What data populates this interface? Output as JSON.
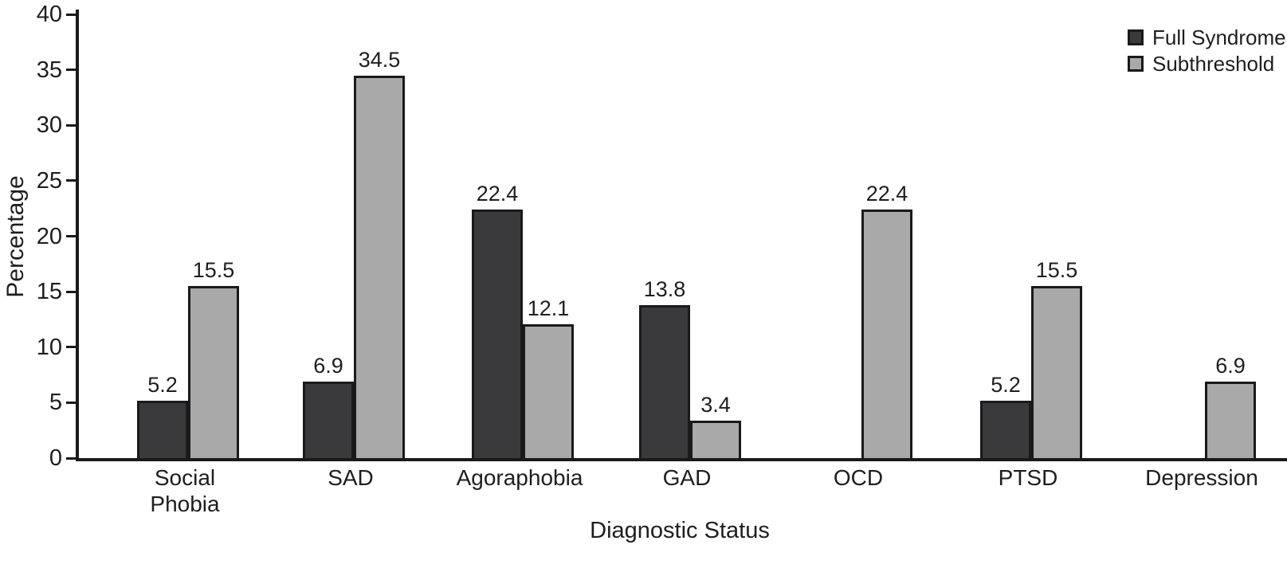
{
  "chart_data": {
    "type": "bar",
    "title": "",
    "xlabel": "Diagnostic Status",
    "ylabel": "Percentage",
    "categories": [
      "Social\nPhobia",
      "SAD",
      "Agoraphobia",
      "GAD",
      "OCD",
      "PTSD",
      "Depression"
    ],
    "series": [
      {
        "name": "Full Syndrome",
        "color": "#3a3a3c",
        "values": [
          5.2,
          6.9,
          22.4,
          13.8,
          null,
          5.2,
          null
        ]
      },
      {
        "name": "Subthreshold",
        "color": "#a9a9a9",
        "values": [
          15.5,
          34.5,
          12.1,
          3.4,
          22.4,
          15.5,
          6.9
        ]
      }
    ],
    "bar_value_labels": [
      [
        "5.2",
        "6.9",
        "22.4",
        "13.8",
        null,
        "5.2",
        null
      ],
      [
        "15.5",
        "34.5",
        "12.1",
        "3.4",
        "22.4",
        "15.5",
        "6.9"
      ]
    ],
    "ylim": [
      0,
      40
    ],
    "yticks": [
      "0",
      "5",
      "10",
      "15",
      "20",
      "25",
      "30",
      "35",
      "40"
    ],
    "grid": false,
    "legend_position": "top-right"
  },
  "colors": {
    "axis": "#1a1a1a",
    "text": "#1e1e1e",
    "background": "#ffffff",
    "full_syndrome": "#3a3a3c",
    "subthreshold": "#a9a9a9"
  }
}
